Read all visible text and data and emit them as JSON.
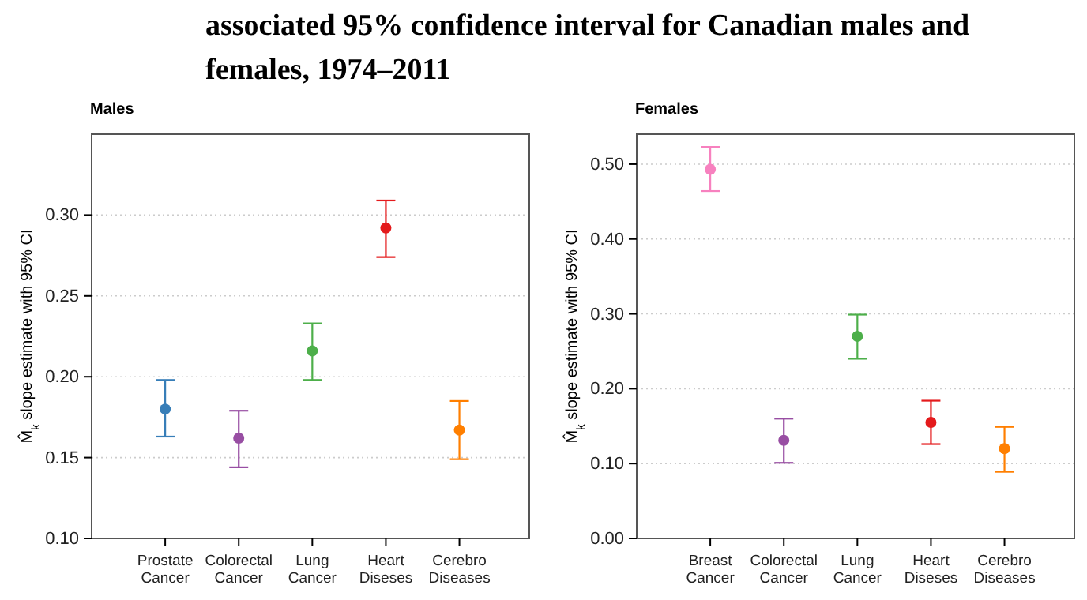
{
  "chart_data": [
    {
      "type": "scatter",
      "title": "Males",
      "annotations": [
        "associated 95% confidence interval for Canadian males and females, 1974–2011"
      ],
      "ylabel": "M̂$_{k}$ slope estimate with 95% CI",
      "categories": [
        "Prostate\nCancer",
        "Colorectal\nCancer",
        "Lung\nCancer",
        "Heart\nDiseses",
        "Cerebro\nDiseases"
      ],
      "values": [
        0.18,
        0.162,
        0.216,
        0.292,
        0.167
      ],
      "errors": [
        [
          0.163,
          0.198
        ],
        [
          0.144,
          0.179
        ],
        [
          0.198,
          0.233
        ],
        [
          0.274,
          0.309
        ],
        [
          0.149,
          0.185
        ]
      ],
      "colors": [
        "#377eb8",
        "#984ea3",
        "#4daf4a",
        "#e41a1c",
        "#ff7f00"
      ],
      "ylim": [
        0.1,
        0.35
      ],
      "yticks": [
        {
          "value": 0.1,
          "label": "0.10"
        },
        {
          "value": 0.15,
          "label": "0.15"
        },
        {
          "value": 0.2,
          "label": "0.20"
        },
        {
          "value": 0.25,
          "label": "0.25"
        },
        {
          "value": 0.3,
          "label": "0.30"
        }
      ],
      "grid": "y",
      "marker": "circle"
    },
    {
      "type": "scatter",
      "title": "Females",
      "ylabel": "M̂$_{k}$ slope estimate with 95% CI",
      "categories": [
        "Breast\nCancer",
        "Colorectal\nCancer",
        "Lung\nCancer",
        "Heart\nDiseses",
        "Cerebro\nDiseases"
      ],
      "values": [
        0.493,
        0.131,
        0.27,
        0.155,
        0.12
      ],
      "errors": [
        [
          0.464,
          0.523
        ],
        [
          0.101,
          0.16
        ],
        [
          0.24,
          0.299
        ],
        [
          0.126,
          0.184
        ],
        [
          0.089,
          0.149
        ]
      ],
      "colors": [
        "#f781bf",
        "#984ea3",
        "#4daf4a",
        "#e41a1c",
        "#ff7f00"
      ],
      "ylim": [
        0.0,
        0.54
      ],
      "yticks": [
        {
          "value": 0,
          "label": "0.00"
        },
        {
          "value": 0.1,
          "label": "0.10"
        },
        {
          "value": 0.2,
          "label": "0.20"
        },
        {
          "value": 0.3,
          "label": "0.30"
        },
        {
          "value": 0.4,
          "label": "0.40"
        },
        {
          "value": 0.5,
          "label": "0.50"
        }
      ],
      "grid": "y",
      "marker": "circle"
    }
  ]
}
